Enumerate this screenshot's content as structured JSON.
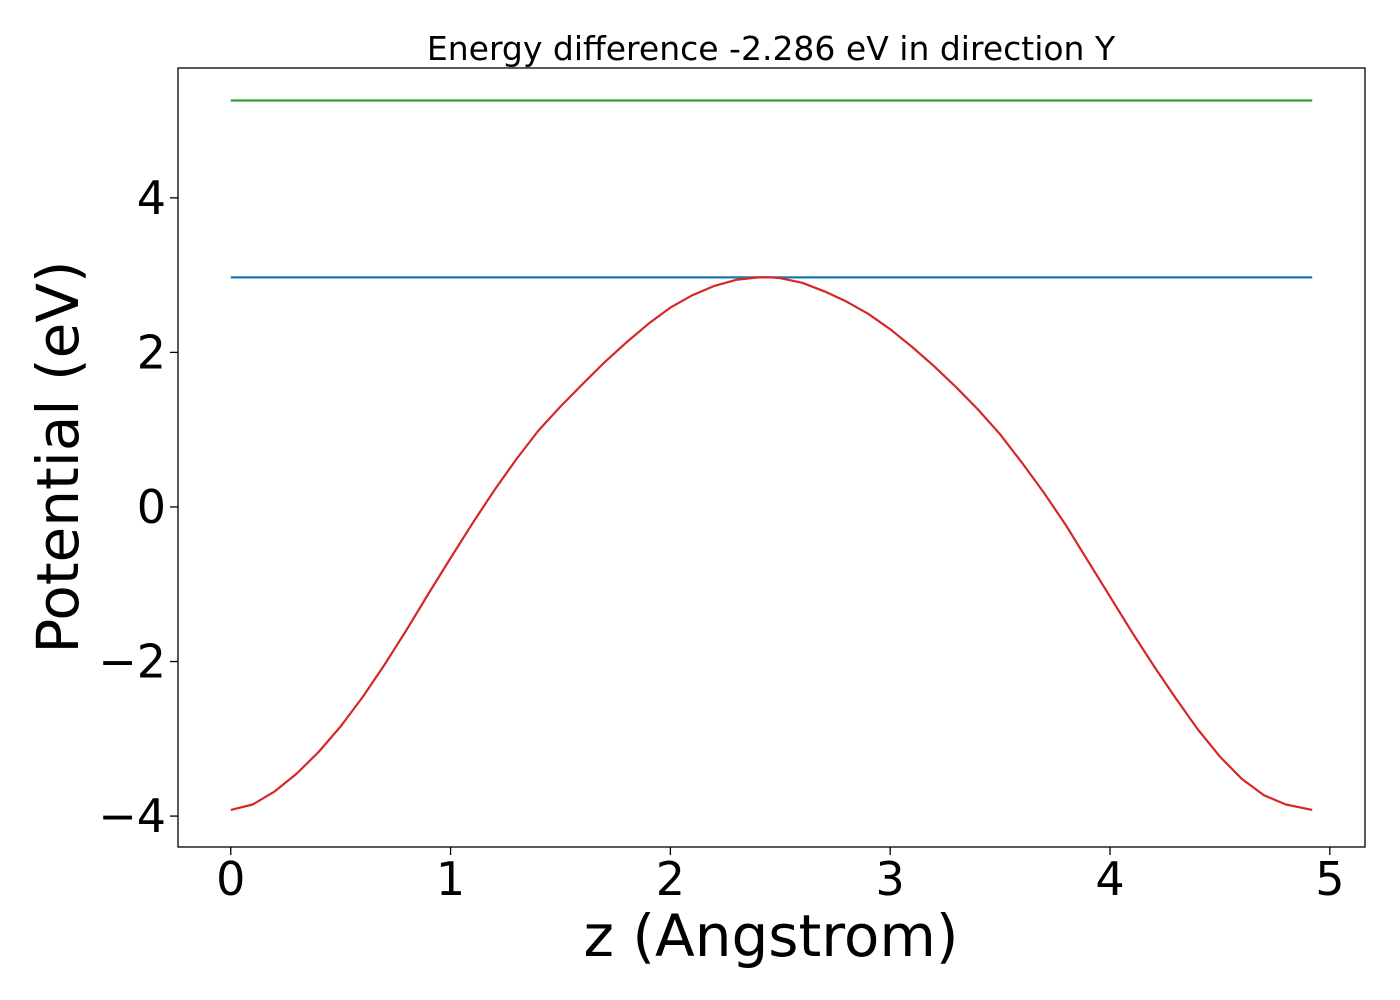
{
  "chart_data": {
    "type": "line",
    "title": "Energy difference -2.286 eV in direction Y",
    "xlabel": "z (Angstrom)",
    "ylabel": "Potential (eV)",
    "xlim": [
      -0.24,
      5.16
    ],
    "ylim": [
      -4.4,
      5.68
    ],
    "xticks": [
      0,
      1,
      2,
      3,
      4,
      5
    ],
    "xtick_labels": [
      "0",
      "1",
      "2",
      "3",
      "4",
      "5"
    ],
    "yticks": [
      -4,
      -2,
      0,
      2,
      4
    ],
    "ytick_labels": [
      "−4",
      "−2",
      "0",
      "2",
      "4"
    ],
    "grid": false,
    "series": [
      {
        "color": "#2ca02c",
        "x": [
          0.0,
          4.92
        ],
        "y": [
          5.26,
          5.26
        ]
      },
      {
        "color": "#1f77b4",
        "x": [
          0.0,
          4.92
        ],
        "y": [
          2.97,
          2.97
        ]
      },
      {
        "color": "#d62728",
        "x": [
          0.0,
          0.1,
          0.2,
          0.3,
          0.4,
          0.5,
          0.6,
          0.7,
          0.8,
          0.9,
          1.0,
          1.1,
          1.2,
          1.3,
          1.4,
          1.5,
          1.6,
          1.7,
          1.8,
          1.9,
          2.0,
          2.1,
          2.2,
          2.3,
          2.4,
          2.46,
          2.5,
          2.6,
          2.7,
          2.8,
          2.9,
          3.0,
          3.1,
          3.2,
          3.3,
          3.4,
          3.5,
          3.6,
          3.7,
          3.8,
          3.9,
          4.0,
          4.1,
          4.2,
          4.3,
          4.4,
          4.5,
          4.6,
          4.7,
          4.8,
          4.92
        ],
        "y": [
          -3.92,
          -3.85,
          -3.68,
          -3.45,
          -3.17,
          -2.84,
          -2.46,
          -2.04,
          -1.59,
          -1.12,
          -0.66,
          -0.21,
          0.22,
          0.62,
          0.99,
          1.3,
          1.59,
          1.87,
          2.13,
          2.37,
          2.58,
          2.74,
          2.86,
          2.94,
          2.97,
          2.97,
          2.96,
          2.9,
          2.79,
          2.66,
          2.5,
          2.3,
          2.07,
          1.82,
          1.55,
          1.26,
          0.94,
          0.57,
          0.18,
          -0.24,
          -0.7,
          -1.16,
          -1.62,
          -2.06,
          -2.48,
          -2.88,
          -3.23,
          -3.52,
          -3.73,
          -3.85,
          -3.92
        ]
      }
    ]
  }
}
